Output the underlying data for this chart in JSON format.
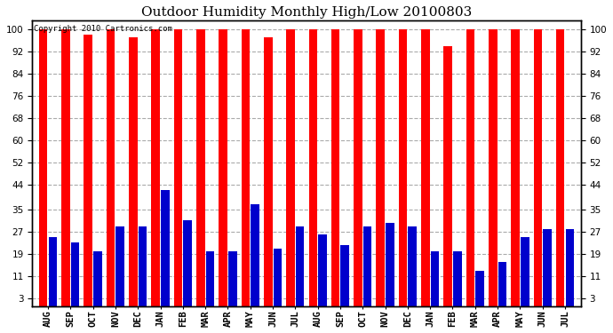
{
  "title": "Outdoor Humidity Monthly High/Low 20100803",
  "copyright": "Copyright 2010 Cartronics.com",
  "months": [
    "AUG",
    "SEP",
    "OCT",
    "NOV",
    "DEC",
    "JAN",
    "FEB",
    "MAR",
    "APR",
    "MAY",
    "JUN",
    "JUL",
    "AUG",
    "SEP",
    "OCT",
    "NOV",
    "DEC",
    "JAN",
    "FEB",
    "MAR",
    "APR",
    "MAY",
    "JUN",
    "JUL"
  ],
  "highs": [
    100,
    100,
    98,
    100,
    97,
    100,
    100,
    100,
    100,
    100,
    97,
    100,
    100,
    100,
    100,
    100,
    100,
    100,
    94,
    100,
    100,
    100,
    100,
    100
  ],
  "lows": [
    25,
    23,
    20,
    29,
    29,
    42,
    31,
    20,
    20,
    37,
    21,
    29,
    26,
    22,
    29,
    30,
    29,
    20,
    20,
    13,
    16,
    25,
    28,
    28
  ],
  "high_color": "#ff0000",
  "low_color": "#0000cc",
  "background_color": "#ffffff",
  "grid_color": "#aaaaaa",
  "yticks": [
    3,
    11,
    19,
    27,
    35,
    44,
    52,
    60,
    68,
    76,
    84,
    92,
    100
  ],
  "ylim": [
    0,
    103
  ],
  "title_fontsize": 11,
  "tick_fontsize": 7.5
}
